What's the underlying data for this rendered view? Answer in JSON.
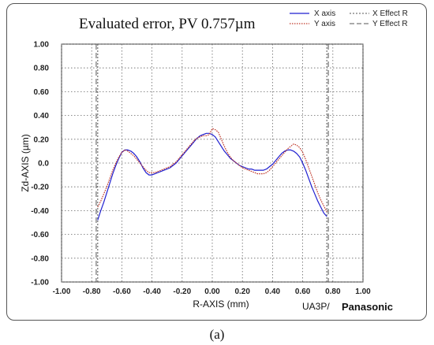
{
  "chart_data": {
    "type": "line",
    "title": "Evaluated error,   PV 0.757µm",
    "xlabel": "R-AXIS (mm)",
    "ylabel": "Zd-AXIS (µm)",
    "xlim": [
      -1.0,
      1.0
    ],
    "ylim": [
      -1.0,
      1.0
    ],
    "x_ticks": [
      -1.0,
      -0.8,
      -0.6,
      -0.4,
      -0.2,
      0.0,
      0.2,
      0.4,
      0.6,
      0.8,
      1.0
    ],
    "y_ticks": [
      1.0,
      0.8,
      0.6,
      0.4,
      0.2,
      0.0,
      -0.2,
      -0.4,
      -0.6,
      -0.8,
      -1.0
    ],
    "x_tick_labels": [
      "-1.00",
      "-0.80",
      "-0.60",
      "-0.40",
      "-0.20",
      "0.00",
      "0.20",
      "0.40",
      "0.60",
      "0.80",
      "1.00"
    ],
    "y_tick_labels": [
      "1.00",
      "0.80",
      "0.60",
      "0.40",
      "0.20",
      "0.0",
      "-0.20",
      "-0.40",
      "-0.60",
      "-0.80",
      "-1.00"
    ],
    "grid": true,
    "legend_position": "top-right",
    "series": [
      {
        "name": "X axis",
        "color": "#1f1fd0",
        "style": "solid",
        "x": [
          -0.76,
          -0.74,
          -0.72,
          -0.7,
          -0.68,
          -0.66,
          -0.64,
          -0.62,
          -0.6,
          -0.58,
          -0.56,
          -0.54,
          -0.52,
          -0.5,
          -0.48,
          -0.46,
          -0.44,
          -0.42,
          -0.4,
          -0.38,
          -0.36,
          -0.34,
          -0.32,
          -0.3,
          -0.28,
          -0.26,
          -0.24,
          -0.22,
          -0.2,
          -0.18,
          -0.16,
          -0.14,
          -0.12,
          -0.1,
          -0.08,
          -0.06,
          -0.04,
          -0.02,
          0.0,
          0.02,
          0.04,
          0.06,
          0.08,
          0.1,
          0.12,
          0.14,
          0.16,
          0.18,
          0.2,
          0.22,
          0.24,
          0.26,
          0.28,
          0.3,
          0.32,
          0.34,
          0.36,
          0.38,
          0.4,
          0.42,
          0.44,
          0.46,
          0.48,
          0.5,
          0.52,
          0.54,
          0.56,
          0.58,
          0.6,
          0.62,
          0.64,
          0.66,
          0.68,
          0.7,
          0.72,
          0.74,
          0.76
        ],
        "values": [
          -0.48,
          -0.4,
          -0.33,
          -0.25,
          -0.17,
          -0.09,
          -0.02,
          0.04,
          0.09,
          0.11,
          0.11,
          0.1,
          0.08,
          0.05,
          0.01,
          -0.04,
          -0.08,
          -0.1,
          -0.1,
          -0.09,
          -0.08,
          -0.07,
          -0.06,
          -0.05,
          -0.04,
          -0.02,
          0.0,
          0.03,
          0.06,
          0.09,
          0.12,
          0.15,
          0.18,
          0.21,
          0.23,
          0.24,
          0.25,
          0.25,
          0.24,
          0.22,
          0.18,
          0.14,
          0.1,
          0.07,
          0.04,
          0.02,
          0.0,
          -0.02,
          -0.03,
          -0.04,
          -0.05,
          -0.05,
          -0.06,
          -0.06,
          -0.06,
          -0.06,
          -0.05,
          -0.03,
          -0.01,
          0.02,
          0.05,
          0.08,
          0.1,
          0.11,
          0.11,
          0.1,
          0.08,
          0.05,
          0.0,
          -0.06,
          -0.13,
          -0.2,
          -0.26,
          -0.32,
          -0.37,
          -0.42,
          -0.45
        ]
      },
      {
        "name": "Y axis",
        "color": "#c0392b",
        "style": "dotted",
        "x": [
          -0.76,
          -0.74,
          -0.72,
          -0.7,
          -0.68,
          -0.66,
          -0.64,
          -0.62,
          -0.6,
          -0.58,
          -0.56,
          -0.54,
          -0.52,
          -0.5,
          -0.48,
          -0.46,
          -0.44,
          -0.42,
          -0.4,
          -0.38,
          -0.36,
          -0.34,
          -0.32,
          -0.3,
          -0.28,
          -0.26,
          -0.24,
          -0.22,
          -0.2,
          -0.18,
          -0.16,
          -0.14,
          -0.12,
          -0.1,
          -0.08,
          -0.06,
          -0.04,
          -0.02,
          0.0,
          0.02,
          0.04,
          0.06,
          0.08,
          0.1,
          0.12,
          0.14,
          0.16,
          0.18,
          0.2,
          0.22,
          0.24,
          0.26,
          0.28,
          0.3,
          0.32,
          0.34,
          0.36,
          0.38,
          0.4,
          0.42,
          0.44,
          0.46,
          0.48,
          0.5,
          0.52,
          0.54,
          0.56,
          0.58,
          0.6,
          0.62,
          0.64,
          0.66,
          0.68,
          0.7,
          0.72,
          0.74,
          0.76
        ],
        "values": [
          -0.37,
          -0.32,
          -0.26,
          -0.2,
          -0.13,
          -0.06,
          0.0,
          0.05,
          0.09,
          0.11,
          0.1,
          0.08,
          0.06,
          0.03,
          0.0,
          -0.03,
          -0.06,
          -0.08,
          -0.08,
          -0.08,
          -0.07,
          -0.06,
          -0.05,
          -0.04,
          -0.03,
          -0.01,
          0.01,
          0.04,
          0.07,
          0.1,
          0.13,
          0.16,
          0.19,
          0.21,
          0.22,
          0.23,
          0.23,
          0.24,
          0.29,
          0.28,
          0.26,
          0.2,
          0.14,
          0.09,
          0.05,
          0.02,
          0.0,
          -0.02,
          -0.04,
          -0.05,
          -0.06,
          -0.07,
          -0.08,
          -0.09,
          -0.09,
          -0.09,
          -0.08,
          -0.06,
          -0.03,
          0.0,
          0.03,
          0.06,
          0.09,
          0.12,
          0.14,
          0.16,
          0.15,
          0.13,
          0.09,
          0.03,
          -0.04,
          -0.11,
          -0.18,
          -0.25,
          -0.31,
          -0.36,
          -0.41
        ]
      }
    ],
    "effect_lines": [
      {
        "name": "X Effect R",
        "style": "dotted",
        "color": "#555555",
        "x": [
          -0.76,
          0.76
        ]
      },
      {
        "name": "Y Effect R",
        "style": "dashed",
        "color": "#555555",
        "x": [
          -0.77,
          0.77
        ]
      }
    ]
  },
  "footer": {
    "model": "UA3P/",
    "brand": "Panasonic"
  },
  "caption": "(a)"
}
